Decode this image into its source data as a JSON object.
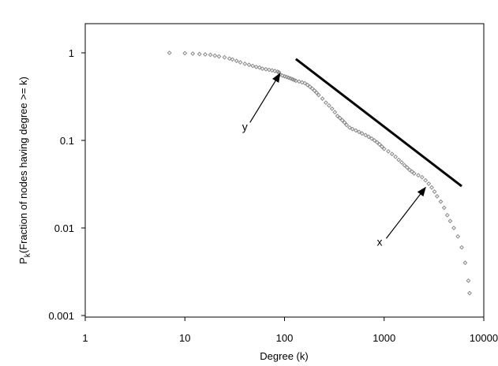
{
  "chart_data": {
    "type": "scatter",
    "xlabel": "Degree (k)",
    "ylabel_main": "P",
    "ylabel_sub": "k",
    "ylabel_rest": "(Fraction of nodes having degree >= k)",
    "xscale": "log",
    "yscale": "log",
    "xlim": [
      1,
      10000
    ],
    "ylim": [
      0.001,
      1
    ],
    "x_ticks": [
      {
        "value": 1,
        "label": "1"
      },
      {
        "value": 10,
        "label": "10"
      },
      {
        "value": 100,
        "label": "100"
      },
      {
        "value": 1000,
        "label": "1000"
      },
      {
        "value": 10000,
        "label": "10000"
      }
    ],
    "y_ticks": [
      {
        "value": 1,
        "label": "1"
      },
      {
        "value": 0.1,
        "label": "0.1"
      },
      {
        "value": 0.01,
        "label": "0.01"
      },
      {
        "value": 0.001,
        "label": "0.001"
      }
    ],
    "grid": false,
    "marker_color": "#888888",
    "series": [
      {
        "x": [
          7,
          10,
          12,
          14,
          16,
          18,
          20,
          22,
          25,
          28,
          30,
          33,
          36,
          40,
          44,
          48,
          52,
          56,
          60,
          65,
          70,
          75,
          80,
          85,
          88,
          90,
          95,
          100,
          105,
          110,
          115,
          120,
          125,
          130,
          140,
          150,
          160,
          170,
          180,
          190,
          200,
          210,
          220,
          240,
          260,
          280,
          300,
          320,
          340,
          360,
          380,
          400,
          420,
          450,
          480,
          520,
          560,
          600,
          650,
          700,
          750,
          800,
          850,
          900,
          950,
          1000,
          1100,
          1200,
          1300,
          1400,
          1500,
          1600,
          1700,
          1800,
          1900,
          2000,
          2200,
          2400,
          2600,
          2800,
          3000,
          3200,
          3400,
          3700,
          4000,
          4300,
          4600,
          5000,
          5500,
          6000,
          6500,
          7000,
          7200
        ],
        "y": [
          1.0,
          0.99,
          0.98,
          0.97,
          0.96,
          0.95,
          0.93,
          0.91,
          0.89,
          0.86,
          0.84,
          0.81,
          0.78,
          0.75,
          0.73,
          0.71,
          0.69,
          0.68,
          0.66,
          0.65,
          0.64,
          0.63,
          0.62,
          0.61,
          0.6,
          0.57,
          0.55,
          0.54,
          0.53,
          0.52,
          0.51,
          0.5,
          0.49,
          0.48,
          0.47,
          0.46,
          0.45,
          0.43,
          0.41,
          0.39,
          0.37,
          0.35,
          0.33,
          0.3,
          0.27,
          0.25,
          0.23,
          0.21,
          0.19,
          0.18,
          0.17,
          0.16,
          0.15,
          0.14,
          0.135,
          0.13,
          0.125,
          0.12,
          0.115,
          0.11,
          0.105,
          0.1,
          0.095,
          0.09,
          0.085,
          0.08,
          0.075,
          0.07,
          0.065,
          0.06,
          0.056,
          0.052,
          0.049,
          0.046,
          0.044,
          0.042,
          0.04,
          0.038,
          0.035,
          0.032,
          0.029,
          0.026,
          0.023,
          0.02,
          0.017,
          0.014,
          0.012,
          0.01,
          0.008,
          0.006,
          0.004,
          0.0025,
          0.0018
        ]
      }
    ],
    "reference_line": {
      "x": [
        130,
        6000
      ],
      "y": [
        0.85,
        0.03
      ]
    },
    "annotations": [
      {
        "label": "y",
        "text_x": 40,
        "text_y": 0.13,
        "arrow_from": [
          45,
          0.16
        ],
        "arrow_to": [
          90,
          0.58
        ]
      },
      {
        "label": "x",
        "text_x": 900,
        "text_y": 0.0063,
        "arrow_from": [
          1050,
          0.0076
        ],
        "arrow_to": [
          2600,
          0.029
        ]
      }
    ]
  }
}
